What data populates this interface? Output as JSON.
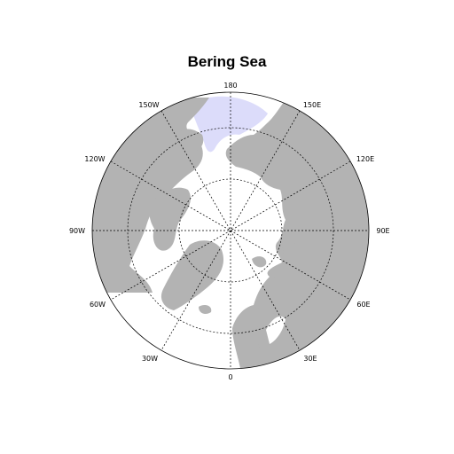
{
  "title": "Bering Sea",
  "projection": "north-polar-stereographic",
  "colors": {
    "land": "#b3b3b3",
    "ocean": "#ffffff",
    "highlight_region": "#dcdcfa",
    "grid": "#000000"
  },
  "highlighted_region": "Bering Sea",
  "grid": {
    "style": "dashed",
    "latitude_circles": 2,
    "meridian_spacing_deg": 30
  },
  "longitude_labels": {
    "top": "180",
    "top_right": "150E",
    "upper_right": "120E",
    "right": "90E",
    "lower_right": "60E",
    "bottom_right": "30E",
    "bottom": "0",
    "bottom_left": "30W",
    "lower_left": "60W",
    "left": "90W",
    "upper_left": "120W",
    "top_left": "150W"
  }
}
